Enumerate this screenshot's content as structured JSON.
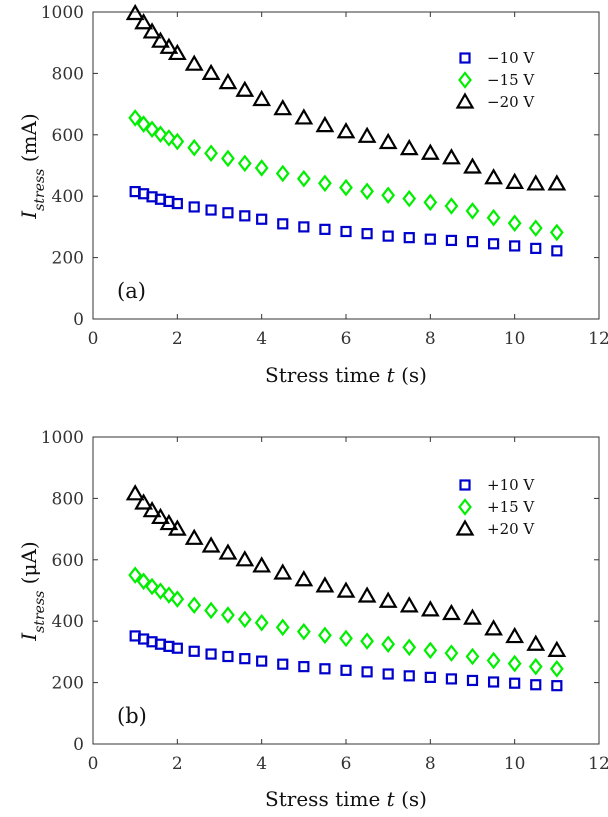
{
  "chart_data": [
    {
      "type": "scatter",
      "panel_label": "(a)",
      "xlabel_prefix": "Stress time ",
      "xlabel_var": "t",
      "xlabel_suffix": " (s)",
      "ylabel_main": "I",
      "ylabel_sub": "stress",
      "ylabel_unit": " (mA)",
      "xlim": [
        0,
        12
      ],
      "ylim": [
        0,
        1000
      ],
      "xticks": [
        0,
        2,
        4,
        6,
        8,
        10,
        12
      ],
      "yticks": [
        0,
        200,
        400,
        600,
        800,
        1000
      ],
      "legend_position": "top-right",
      "grid": false,
      "series": [
        {
          "name": "−10 V",
          "marker": "square",
          "color": "#0000cc",
          "x": [
            1.0,
            1.2,
            1.4,
            1.6,
            1.8,
            2.0,
            2.4,
            2.8,
            3.2,
            3.6,
            4.0,
            4.5,
            5.0,
            5.5,
            6.0,
            6.5,
            7.0,
            7.5,
            8.0,
            8.5,
            9.0,
            9.5,
            10.0,
            10.5,
            11.0
          ],
          "y": [
            415,
            408,
            398,
            390,
            383,
            376,
            365,
            355,
            346,
            336,
            325,
            310,
            300,
            292,
            285,
            278,
            270,
            265,
            260,
            256,
            252,
            245,
            238,
            230,
            222
          ]
        },
        {
          "name": "−15 V",
          "marker": "diamond",
          "color": "#00ee00",
          "x": [
            1.0,
            1.2,
            1.4,
            1.6,
            1.8,
            2.0,
            2.4,
            2.8,
            3.2,
            3.6,
            4.0,
            4.5,
            5.0,
            5.5,
            6.0,
            6.5,
            7.0,
            7.5,
            8.0,
            8.5,
            9.0,
            9.5,
            10.0,
            10.5,
            11.0
          ],
          "y": [
            655,
            635,
            618,
            602,
            590,
            578,
            558,
            540,
            523,
            507,
            492,
            474,
            457,
            442,
            428,
            416,
            403,
            392,
            380,
            368,
            352,
            330,
            312,
            296,
            282
          ]
        },
        {
          "name": "−20 V",
          "marker": "triangle",
          "color": "#000000",
          "x": [
            1.0,
            1.2,
            1.4,
            1.6,
            1.8,
            2.0,
            2.4,
            2.8,
            3.2,
            3.6,
            4.0,
            4.5,
            5.0,
            5.5,
            6.0,
            6.5,
            7.0,
            7.5,
            8.0,
            8.5,
            9.0,
            9.5,
            10.0,
            10.5,
            11.0
          ],
          "y": [
            995,
            965,
            935,
            905,
            885,
            865,
            830,
            800,
            770,
            745,
            715,
            685,
            655,
            630,
            610,
            595,
            575,
            555,
            540,
            525,
            495,
            460,
            445,
            440,
            440
          ]
        }
      ]
    },
    {
      "type": "scatter",
      "panel_label": "(b)",
      "xlabel_prefix": "Stress time ",
      "xlabel_var": "t",
      "xlabel_suffix": " (s)",
      "ylabel_main": "I",
      "ylabel_sub": "stress",
      "ylabel_unit": " (μA)",
      "xlim": [
        0,
        12
      ],
      "ylim": [
        0,
        1000
      ],
      "xticks": [
        0,
        2,
        4,
        6,
        8,
        10,
        12
      ],
      "yticks": [
        0,
        200,
        400,
        600,
        800,
        1000
      ],
      "legend_position": "top-right",
      "grid": false,
      "series": [
        {
          "name": "+10 V",
          "marker": "square",
          "color": "#0000cc",
          "x": [
            1.0,
            1.2,
            1.4,
            1.6,
            1.8,
            2.0,
            2.4,
            2.8,
            3.2,
            3.6,
            4.0,
            4.5,
            5.0,
            5.5,
            6.0,
            6.5,
            7.0,
            7.5,
            8.0,
            8.5,
            9.0,
            9.5,
            10.0,
            10.5,
            11.0
          ],
          "y": [
            352,
            342,
            333,
            325,
            318,
            312,
            302,
            293,
            285,
            278,
            270,
            260,
            252,
            245,
            240,
            235,
            228,
            222,
            217,
            212,
            207,
            202,
            198,
            193,
            190
          ]
        },
        {
          "name": "+15 V",
          "marker": "diamond",
          "color": "#00ee00",
          "x": [
            1.0,
            1.2,
            1.4,
            1.6,
            1.8,
            2.0,
            2.4,
            2.8,
            3.2,
            3.6,
            4.0,
            4.5,
            5.0,
            5.5,
            6.0,
            6.5,
            7.0,
            7.5,
            8.0,
            8.5,
            9.0,
            9.5,
            10.0,
            10.5,
            11.0
          ],
          "y": [
            550,
            530,
            513,
            498,
            485,
            472,
            452,
            435,
            420,
            406,
            395,
            380,
            366,
            354,
            344,
            335,
            325,
            315,
            305,
            296,
            285,
            272,
            262,
            252,
            245
          ]
        },
        {
          "name": "+20 V",
          "marker": "triangle",
          "color": "#000000",
          "x": [
            1.0,
            1.2,
            1.4,
            1.6,
            1.8,
            2.0,
            2.4,
            2.8,
            3.2,
            3.6,
            4.0,
            4.5,
            5.0,
            5.5,
            6.0,
            6.5,
            7.0,
            7.5,
            8.0,
            8.5,
            9.0,
            9.5,
            10.0,
            10.5,
            11.0
          ],
          "y": [
            815,
            785,
            760,
            738,
            718,
            700,
            670,
            645,
            622,
            600,
            580,
            557,
            535,
            515,
            498,
            482,
            465,
            450,
            437,
            425,
            410,
            375,
            350,
            325,
            305
          ]
        }
      ]
    }
  ]
}
